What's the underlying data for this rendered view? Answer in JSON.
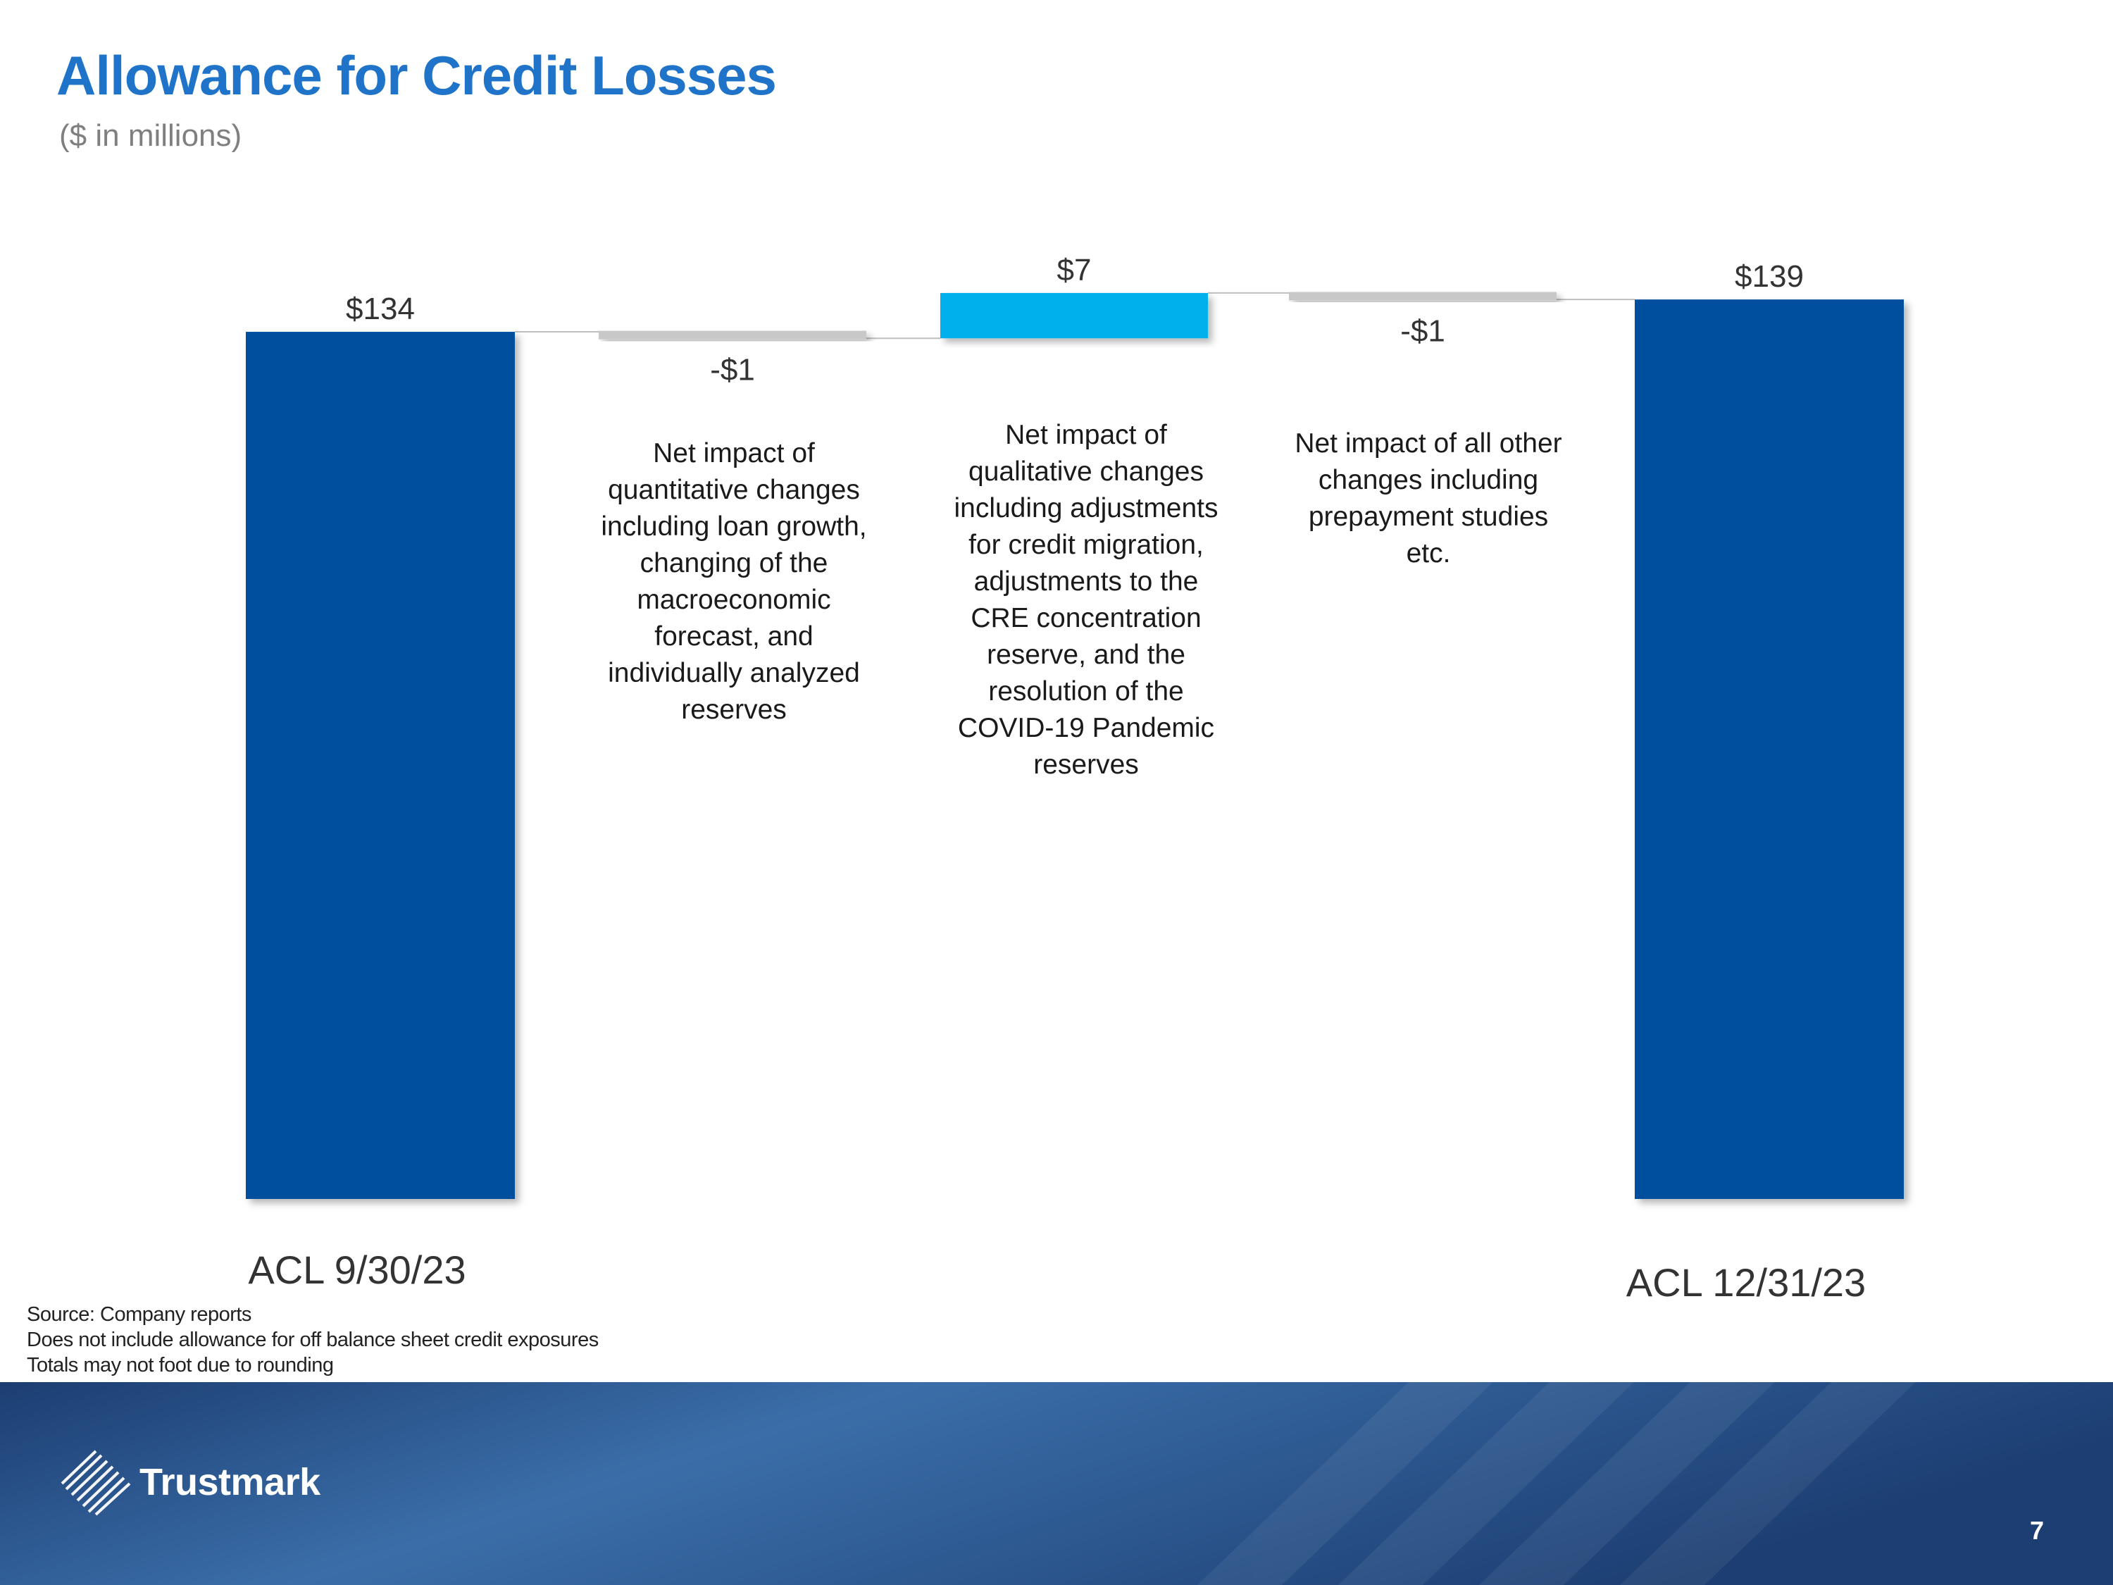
{
  "header": {
    "title": "Allowance for Credit Losses",
    "subtitle": "($ in millions)"
  },
  "colors": {
    "total_bar": "#004f9f",
    "increase_bar": "#00b0ec",
    "decrease_bar": "#c8c8c8",
    "connector": "#bfbfbf",
    "title": "#1f74c9",
    "footer_dark": "#1c3e72",
    "footer_light": "#3b6ea9"
  },
  "chart_data": {
    "type": "waterfall",
    "categories": [
      "ACL 9/30/23",
      "",
      "",
      "",
      "ACL 12/31/23"
    ],
    "values": [
      134,
      -1,
      7,
      -1,
      139
    ],
    "kinds": [
      "total",
      "decrease",
      "increase",
      "decrease",
      "total"
    ],
    "data_labels": [
      "$134",
      "-$1",
      "$7",
      "-$1",
      "$139"
    ],
    "annotations": [
      "",
      "Net impact of quantitative changes including loan growth, changing of the macroeconomic forecast, and individually analyzed reserves",
      "Net impact of qualitative changes including adjustments for credit migration, adjustments to the CRE concentration reserve, and the resolution of the COVID-19 Pandemic reserves",
      "Net impact of all other changes including prepayment studies etc.",
      ""
    ],
    "ylim": [
      0,
      145
    ],
    "grid": false,
    "legend": "none"
  },
  "footnotes": [
    "Source: Company reports",
    "Does not include allowance for off balance sheet credit exposures",
    "Totals may not foot due to rounding"
  ],
  "footer": {
    "logo_text": "Trustmark",
    "page_number": "7"
  }
}
